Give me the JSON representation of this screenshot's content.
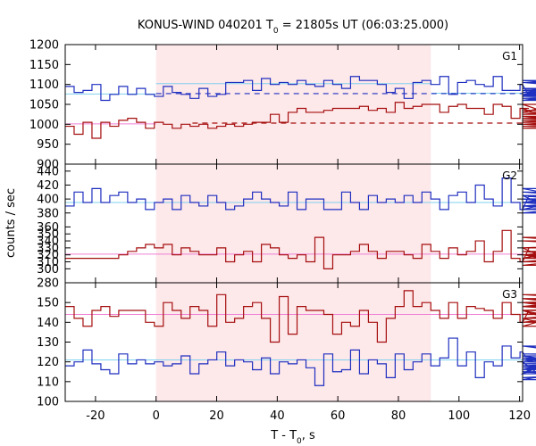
{
  "chart_data": {
    "type": "line",
    "title_main": "KONUS-WIND 040201 T",
    "title_sub": "0",
    "title_rest": " = 21805s UT (06:03:25.000)",
    "xlabel_main": "T - T",
    "xlabel_sub": "0",
    "xlabel_rest": ", s",
    "ylabel": "counts / sec",
    "xlim": [
      -30,
      121
    ],
    "xticks": [
      "-20",
      "0",
      "20",
      "40",
      "60",
      "80",
      "100",
      "120"
    ],
    "xtick_values": [
      -20,
      0,
      20,
      40,
      60,
      80,
      100,
      120
    ],
    "highlight_interval": [
      0,
      90.7
    ],
    "colors": {
      "blue": "#1f2fbf",
      "red": "#a50e0e",
      "cyan": "#7fd1ee",
      "pink": "#f07fd5",
      "shade": "#fde8ea"
    },
    "bin_start": -30,
    "bin_width": 2.944,
    "panels": [
      {
        "label": "G1",
        "ylim": [
          900,
          1200
        ],
        "ytick_values": [
          900,
          950,
          1000,
          1050,
          1100,
          1150,
          1200
        ],
        "yticks": [
          "900",
          "950",
          "1000",
          "1050",
          "1100",
          "1150",
          "1200"
        ],
        "series": [
          {
            "color": "blue",
            "values": [
              1095,
              1080,
              1085,
              1100,
              1060,
              1075,
              1095,
              1075,
              1090,
              1075,
              1070,
              1095,
              1080,
              1075,
              1065,
              1090,
              1070,
              1075,
              1105,
              1105,
              1110,
              1085,
              1115,
              1100,
              1105,
              1100,
              1110,
              1100,
              1095,
              1110,
              1100,
              1090,
              1120,
              1110,
              1110,
              1100,
              1080,
              1090,
              1065,
              1105,
              1110,
              1100,
              1120,
              1075,
              1105,
              1110,
              1100,
              1095,
              1120,
              1085,
              1085,
              1100,
              1070,
              1090,
              1085,
              1075,
              1070,
              1080,
              1070,
              1085,
              1075,
              1080,
              1085,
              1075,
              1060,
              1080,
              1060,
              1105,
              1075,
              1060,
              1075,
              1110,
              1070,
              1065,
              1090,
              1065,
              1075,
              1070,
              1075
            ]
          },
          {
            "color": "red",
            "values": [
              995,
              975,
              1005,
              965,
              1005,
              995,
              1010,
              1015,
              1005,
              990,
              1005,
              1000,
              990,
              1000,
              995,
              1000,
              990,
              995,
              1000,
              995,
              1000,
              1005,
              1005,
              1025,
              1005,
              1030,
              1040,
              1030,
              1030,
              1035,
              1040,
              1040,
              1040,
              1045,
              1035,
              1040,
              1030,
              1055,
              1040,
              1045,
              1050,
              1050,
              1030,
              1045,
              1050,
              1040,
              1040,
              1025,
              1050,
              1045,
              1015,
              1040,
              1040,
              1025,
              1030,
              1050,
              1015,
              1020,
              1020,
              1015,
              1010,
              1005,
              1020,
              1000,
              1015,
              1000,
              990,
              1005,
              1010,
              1000,
              1015,
              1000,
              1010,
              995,
              1010,
              1015,
              1025,
              1035,
              1020
            ]
          }
        ],
        "solid_levels": [
          {
            "color": "cyan",
            "value": 1076,
            "x_range": [
              -30,
              0
            ]
          },
          {
            "color": "cyan",
            "value": 1102,
            "x_range": [
              0,
              91
            ]
          },
          {
            "color": "cyan",
            "value": 1078,
            "x_range": [
              91,
              121
            ]
          },
          {
            "color": "pink",
            "value": 1001,
            "x_range": [
              -30,
              0
            ]
          }
        ],
        "dashed_levels": [
          {
            "color": "blue",
            "value": 1077,
            "x_range": [
              0,
              121
            ]
          },
          {
            "color": "red",
            "value": 1003,
            "x_range": [
              12,
              121
            ]
          }
        ]
      },
      {
        "label": "G2",
        "ylim": [
          280,
          450
        ],
        "ytick_values": [
          280,
          300,
          310,
          320,
          330,
          340,
          350,
          360,
          380,
          400,
          420,
          440
        ],
        "yticks": [
          "280",
          "300",
          "310",
          "320",
          "330",
          "340",
          "350",
          "360",
          "380",
          "400",
          "420",
          "440"
        ],
        "series": [
          {
            "color": "blue",
            "values": [
              390,
              410,
              395,
              415,
              395,
              405,
              410,
              395,
              400,
              385,
              395,
              400,
              385,
              405,
              395,
              390,
              405,
              395,
              385,
              390,
              400,
              410,
              400,
              395,
              390,
              410,
              385,
              400,
              400,
              385,
              385,
              410,
              395,
              385,
              405,
              395,
              400,
              395,
              405,
              395,
              410,
              400,
              385,
              405,
              410,
              395,
              420,
              400,
              390,
              430,
              395,
              385,
              405,
              395,
              400,
              395,
              390,
              385,
              405,
              395,
              395,
              410,
              400,
              385,
              395,
              415,
              380,
              400,
              400,
              385,
              400,
              395,
              385,
              390,
              410,
              395,
              400,
              405,
              395
            ]
          },
          {
            "color": "red",
            "values": [
              315,
              315,
              315,
              315,
              315,
              315,
              320,
              325,
              330,
              335,
              330,
              335,
              320,
              330,
              325,
              320,
              320,
              330,
              310,
              320,
              325,
              310,
              335,
              330,
              320,
              315,
              320,
              310,
              345,
              300,
              320,
              320,
              325,
              335,
              325,
              315,
              325,
              325,
              320,
              315,
              335,
              325,
              315,
              330,
              320,
              325,
              340,
              310,
              325,
              355,
              315,
              310,
              330,
              320,
              315,
              325,
              320,
              315,
              320,
              325,
              315,
              320,
              315,
              320,
              310,
              325,
              325,
              315,
              320,
              305,
              330,
              340,
              325,
              320,
              345,
              325,
              315,
              320,
              325
            ]
          }
        ],
        "solid_levels": [
          {
            "color": "cyan",
            "value": 395,
            "x_range": [
              -30,
              121
            ]
          },
          {
            "color": "pink",
            "value": 321,
            "x_range": [
              -30,
              121
            ]
          }
        ],
        "dashed_levels": []
      },
      {
        "label": "G3",
        "ylim": [
          100,
          160
        ],
        "ytick_values": [
          100,
          110,
          120,
          130,
          140,
          150
        ],
        "yticks": [
          "100",
          "110",
          "120",
          "130",
          "140",
          "150"
        ],
        "series": [
          {
            "color": "blue",
            "values": [
              118,
              120,
              126,
              119,
              116,
              114,
              124,
              119,
              121,
              119,
              120,
              118,
              119,
              123,
              114,
              119,
              121,
              125,
              118,
              121,
              120,
              116,
              122,
              114,
              120,
              119,
              121,
              117,
              108,
              124,
              115,
              116,
              126,
              114,
              121,
              119,
              112,
              124,
              116,
              120,
              124,
              118,
              122,
              132,
              118,
              125,
              112,
              120,
              118,
              128,
              122,
              125,
              120,
              114,
              121,
              118,
              117,
              118,
              114,
              128,
              123,
              117,
              112,
              115,
              111,
              121,
              118,
              121,
              116,
              122,
              120,
              118,
              119,
              121,
              128,
              118,
              124,
              122,
              112
            ]
          },
          {
            "color": "red",
            "values": [
              148,
              142,
              138,
              146,
              148,
              143,
              146,
              146,
              146,
              140,
              138,
              150,
              146,
              142,
              148,
              146,
              138,
              154,
              140,
              142,
              148,
              150,
              142,
              130,
              153,
              134,
              148,
              146,
              146,
              144,
              134,
              140,
              138,
              146,
              140,
              130,
              142,
              148,
              156,
              148,
              150,
              146,
              142,
              150,
              142,
              148,
              147,
              146,
              142,
              150,
              144,
              140,
              146,
              146,
              142,
              138,
              144,
              146,
              140,
              144,
              148,
              150,
              152,
              146,
              148,
              154,
              150,
              140,
              144,
              152,
              148,
              142,
              150,
              144,
              146,
              150,
              148,
              152,
              140
            ]
          }
        ],
        "solid_levels": [
          {
            "color": "pink",
            "value": 144,
            "x_range": [
              -30,
              121
            ]
          },
          {
            "color": "cyan",
            "value": 121,
            "x_range": [
              -30,
              121
            ]
          }
        ],
        "dashed_levels": []
      }
    ]
  }
}
